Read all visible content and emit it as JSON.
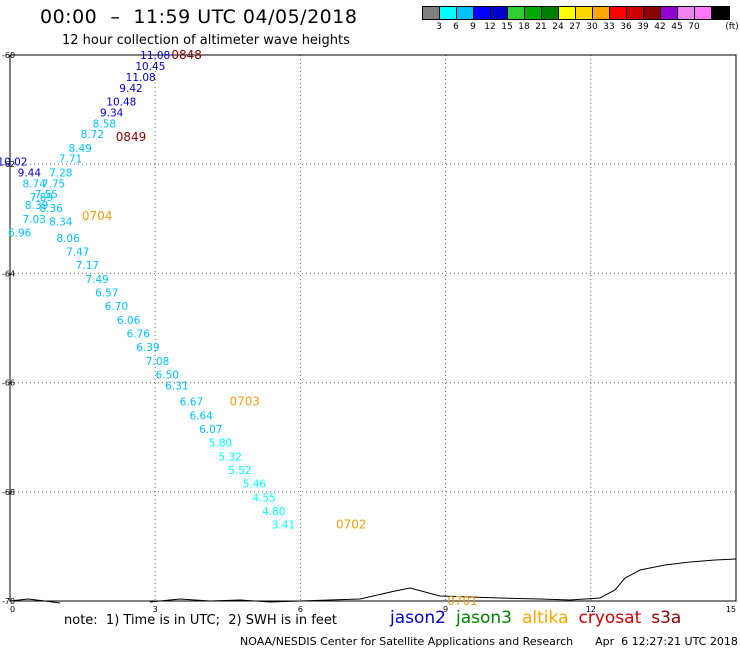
{
  "header": {
    "title": "00:00  –  11:59 UTC 04/05/2018",
    "subtitle": "12 hour collection of altimeter wave heights"
  },
  "colorbar": {
    "colors": [
      "#808080",
      "#00ffff",
      "#00bfff",
      "#0000ff",
      "#0000cd",
      "#32cd32",
      "#00aa00",
      "#008000",
      "#ffff00",
      "#ffd700",
      "#ffa500",
      "#ff0000",
      "#cc0000",
      "#8b0000",
      "#9400d3",
      "#ee82ee",
      "#ff77ff",
      "#000000"
    ],
    "labels": [
      "3",
      "6",
      "9",
      "12",
      "15",
      "18",
      "21",
      "24",
      "27",
      "30",
      "33",
      "36",
      "39",
      "42",
      "45",
      "70"
    ],
    "unit": "(ft)"
  },
  "axes": {
    "x_ticks": [
      "0",
      "3",
      "6",
      "9",
      "12",
      "15"
    ],
    "x_values": [
      0,
      3,
      6,
      9,
      12,
      15
    ],
    "y_ticks": [
      "-60",
      "-62",
      "-64",
      "-66",
      "-68",
      "-70"
    ],
    "y_values": [
      -60,
      -62,
      -64,
      -66,
      -68,
      -70
    ]
  },
  "track": {
    "color_high": "#0000cd",
    "color_mid": "#00bfff",
    "color_low": "#00ffff",
    "points": [
      {
        "t": "11.08",
        "x": 3.0,
        "y": -60.0
      },
      {
        "t": "10.45",
        "x": 2.9,
        "y": -60.2
      },
      {
        "t": "11.08",
        "x": 2.7,
        "y": -60.4
      },
      {
        "t": "9.42",
        "x": 2.5,
        "y": -60.6
      },
      {
        "t": "10.48",
        "x": 2.3,
        "y": -60.85
      },
      {
        "t": "9.34",
        "x": 2.1,
        "y": -61.05
      },
      {
        "t": "8.58",
        "x": 1.95,
        "y": -61.25
      },
      {
        "t": "8.72",
        "x": 1.7,
        "y": -61.45
      },
      {
        "t": "8.49",
        "x": 1.45,
        "y": -61.7
      },
      {
        "t": "7.71",
        "x": 1.25,
        "y": -61.9
      },
      {
        "t": "10.02",
        "x": 0.05,
        "y": -61.95
      },
      {
        "t": "9.44",
        "x": 0.4,
        "y": -62.15
      },
      {
        "t": "7.28",
        "x": 1.05,
        "y": -62.15
      },
      {
        "t": "8.74",
        "x": 0.5,
        "y": -62.35
      },
      {
        "t": "7.75",
        "x": 0.9,
        "y": -62.35
      },
      {
        "t": "7.55",
        "x": 0.75,
        "y": -62.55
      },
      {
        "t": "7.89",
        "x": 0.65,
        "y": -62.6
      },
      {
        "t": "8.39",
        "x": 0.55,
        "y": -62.75
      },
      {
        "t": "8.36",
        "x": 0.85,
        "y": -62.8
      },
      {
        "t": "7.03",
        "x": 0.5,
        "y": -63.0
      },
      {
        "t": "8.34",
        "x": 1.05,
        "y": -63.05
      },
      {
        "t": "6.96",
        "x": 0.2,
        "y": -63.25
      },
      {
        "t": "8.06",
        "x": 1.2,
        "y": -63.35
      },
      {
        "t": "7.47",
        "x": 1.4,
        "y": -63.6
      },
      {
        "t": "7.17",
        "x": 1.6,
        "y": -63.85
      },
      {
        "t": "7.49",
        "x": 1.8,
        "y": -64.1
      },
      {
        "t": "6.57",
        "x": 2.0,
        "y": -64.35
      },
      {
        "t": "6.70",
        "x": 2.2,
        "y": -64.6
      },
      {
        "t": "6.06",
        "x": 2.45,
        "y": -64.85
      },
      {
        "t": "6.76",
        "x": 2.65,
        "y": -65.1
      },
      {
        "t": "6.39",
        "x": 2.85,
        "y": -65.35
      },
      {
        "t": "7.08",
        "x": 3.05,
        "y": -65.6
      },
      {
        "t": "6.50",
        "x": 3.25,
        "y": -65.85
      },
      {
        "t": "6.31",
        "x": 3.45,
        "y": -66.05
      },
      {
        "t": "6.67",
        "x": 3.75,
        "y": -66.35
      },
      {
        "t": "6.64",
        "x": 3.95,
        "y": -66.6
      },
      {
        "t": "6.07",
        "x": 4.15,
        "y": -66.85
      },
      {
        "t": "5.80",
        "x": 4.35,
        "y": -67.1
      },
      {
        "t": "5.32",
        "x": 4.55,
        "y": -67.35
      },
      {
        "t": "5.52",
        "x": 4.75,
        "y": -67.6
      },
      {
        "t": "5.46",
        "x": 5.05,
        "y": -67.85
      },
      {
        "t": "4.55",
        "x": 5.25,
        "y": -68.1
      },
      {
        "t": "4.80",
        "x": 5.45,
        "y": -68.35
      },
      {
        "t": "3.41",
        "x": 5.65,
        "y": -68.6
      }
    ]
  },
  "stamps": [
    {
      "t": "0848",
      "x": 3.65,
      "y": -60.0,
      "dark": true
    },
    {
      "t": "0849",
      "x": 2.5,
      "y": -61.5,
      "dark": true
    },
    {
      "t": "0704",
      "x": 1.8,
      "y": -62.95,
      "dark": false
    },
    {
      "t": "0703",
      "x": 4.85,
      "y": -66.35,
      "dark": false
    },
    {
      "t": "0702",
      "x": 7.05,
      "y": -68.6,
      "dark": false
    },
    {
      "t": "0701",
      "x": 9.35,
      "y": -70.0,
      "dark": false
    }
  ],
  "note": "note:  1) Time is in UTC;  2) SWH is in feet",
  "satellites": [
    {
      "name": "jason2",
      "color": "#0000cd"
    },
    {
      "name": "jason3",
      "color": "#008000"
    },
    {
      "name": "altika",
      "color": "#ffa500"
    },
    {
      "name": "cryosat",
      "color": "#cc0000"
    },
    {
      "name": "s3a",
      "color": "#8b0000"
    }
  ],
  "footer": {
    "credit": "NOAA/NESDIS Center for Satellite Applications and Research",
    "timestamp": "Apr  6 12:27:21 UTC 2018"
  }
}
